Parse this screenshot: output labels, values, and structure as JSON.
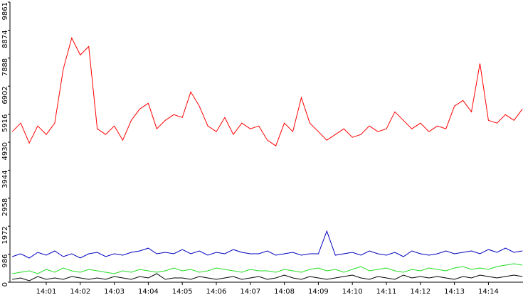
{
  "chart_data": {
    "type": "line",
    "x": [
      0,
      15,
      30,
      45,
      60,
      75,
      90,
      105,
      120,
      135,
      150,
      165,
      180,
      195,
      210,
      225,
      240,
      255,
      270,
      285,
      300,
      315,
      330,
      345,
      360,
      375,
      390,
      405,
      420,
      435,
      450,
      465,
      480,
      495,
      510,
      525,
      540,
      555,
      570,
      585,
      600,
      615,
      630,
      645,
      660,
      675,
      690,
      705,
      720,
      735,
      750,
      765,
      780,
      795,
      810,
      825,
      840,
      855,
      870,
      885,
      900
    ],
    "xlim": [
      -4,
      901
    ],
    "xticks": [
      {
        "value": 60,
        "label": "14:01"
      },
      {
        "value": 120,
        "label": "14:02"
      },
      {
        "value": 180,
        "label": "14:03"
      },
      {
        "value": 240,
        "label": "14:04"
      },
      {
        "value": 300,
        "label": "14:05"
      },
      {
        "value": 360,
        "label": "14:06"
      },
      {
        "value": 420,
        "label": "14:07"
      },
      {
        "value": 480,
        "label": "14:08"
      },
      {
        "value": 540,
        "label": "14:09"
      },
      {
        "value": 600,
        "label": "14:10"
      },
      {
        "value": 660,
        "label": "14:11"
      },
      {
        "value": 720,
        "label": "14:12"
      },
      {
        "value": 780,
        "label": "14:13"
      },
      {
        "value": 840,
        "label": "14:14"
      }
    ],
    "ylim": [
      0,
      9861
    ],
    "yticks": [
      0,
      986,
      1972,
      2958,
      3944,
      4930,
      5916,
      6902,
      7888,
      8874,
      9861
    ],
    "series": [
      {
        "color": "#ff0000",
        "values": [
          5300,
          5600,
          4900,
          5500,
          5200,
          5600,
          7500,
          8600,
          8000,
          8300,
          5400,
          5200,
          5500,
          5000,
          5700,
          6100,
          6300,
          5400,
          5700,
          5900,
          5800,
          6700,
          6200,
          5500,
          5300,
          5800,
          5200,
          5600,
          5400,
          5500,
          5000,
          4800,
          5600,
          5300,
          6500,
          5600,
          5300,
          5000,
          5200,
          5400,
          5100,
          5200,
          5500,
          5300,
          5400,
          6000,
          5700,
          5400,
          5600,
          5300,
          5500,
          5400,
          6200,
          6400,
          6000,
          7700,
          5700,
          5600,
          5900,
          5700,
          6100
        ]
      },
      {
        "color": "#0000c0",
        "values": [
          900,
          1000,
          850,
          1050,
          950,
          1100,
          900,
          1000,
          850,
          1000,
          1050,
          900,
          1000,
          950,
          1050,
          1100,
          1200,
          1000,
          1050,
          1000,
          1150,
          1000,
          1100,
          950,
          1050,
          1000,
          1150,
          1050,
          1000,
          1000,
          1100,
          950,
          1000,
          1050,
          950,
          1000,
          1000,
          1800,
          950,
          1000,
          1050,
          950,
          1100,
          1000,
          950,
          1050,
          900,
          1100,
          1000,
          950,
          1000,
          1100,
          1000,
          1050,
          1100,
          1000,
          1150,
          1050,
          1200,
          1050,
          1100
        ]
      },
      {
        "color": "#22dd22",
        "values": [
          300,
          350,
          400,
          300,
          450,
          350,
          500,
          400,
          350,
          450,
          400,
          350,
          300,
          400,
          350,
          450,
          400,
          350,
          400,
          500,
          400,
          450,
          350,
          400,
          500,
          450,
          400,
          350,
          450,
          400,
          400,
          350,
          450,
          400,
          350,
          450,
          500,
          400,
          450,
          350,
          450,
          550,
          400,
          450,
          500,
          400,
          350,
          450,
          400,
          500,
          450,
          400,
          500,
          550,
          450,
          500,
          450,
          550,
          600,
          650,
          600
        ]
      },
      {
        "color": "#000000",
        "values": [
          100,
          150,
          50,
          200,
          100,
          150,
          100,
          200,
          150,
          100,
          150,
          100,
          200,
          150,
          100,
          200,
          150,
          300,
          100,
          150,
          150,
          100,
          200,
          150,
          100,
          150,
          200,
          100,
          150,
          200,
          100,
          150,
          250,
          150,
          100,
          200,
          150,
          100,
          150,
          200,
          250,
          150,
          100,
          200,
          150,
          100,
          250,
          150,
          200,
          150,
          200,
          150,
          100,
          200,
          150,
          250,
          200,
          150,
          200,
          250,
          200
        ]
      }
    ]
  }
}
